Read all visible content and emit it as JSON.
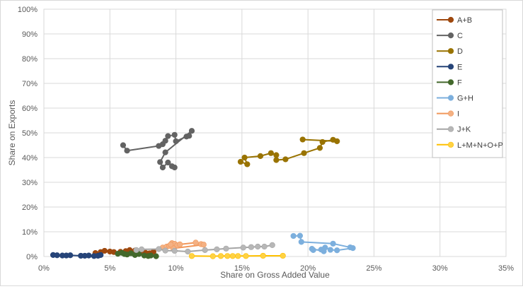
{
  "chart_data": {
    "type": "scatter",
    "title": "",
    "xlabel": "Share on Gross Added Value",
    "ylabel": "Share on Exports",
    "xlim": [
      0,
      35
    ],
    "ylim": [
      0,
      100
    ],
    "x_ticks": [
      "0%",
      "5%",
      "10%",
      "15%",
      "20%",
      "25%",
      "30%",
      "35%"
    ],
    "y_ticks": [
      "0%",
      "10%",
      "20%",
      "30%",
      "40%",
      "50%",
      "60%",
      "70%",
      "80%",
      "90%",
      "100%"
    ],
    "grid": true,
    "legend_position": "right",
    "series": [
      {
        "name": "A+B",
        "color": "#9e480e",
        "points": [
          [
            3.9,
            1.4
          ],
          [
            4.3,
            1.8
          ],
          [
            4.6,
            2.3
          ],
          [
            5.0,
            2.0
          ],
          [
            5.3,
            1.8
          ],
          [
            5.8,
            1.9
          ],
          [
            6.2,
            2.2
          ],
          [
            6.5,
            2.6
          ],
          [
            6.9,
            2.4
          ],
          [
            7.3,
            2.0
          ],
          [
            7.7,
            1.5
          ],
          [
            8.0,
            1.3
          ],
          [
            8.3,
            1.9
          ]
        ]
      },
      {
        "name": "C",
        "color": "#636363",
        "points": [
          [
            6.0,
            45.0
          ],
          [
            6.3,
            42.8
          ],
          [
            8.7,
            44.7
          ],
          [
            9.0,
            45.4
          ],
          [
            9.2,
            46.8
          ],
          [
            9.4,
            48.7
          ],
          [
            9.9,
            49.2
          ],
          [
            10.0,
            46.6
          ],
          [
            10.8,
            48.5
          ],
          [
            11.0,
            48.8
          ],
          [
            11.2,
            50.8
          ],
          [
            9.2,
            42.1
          ],
          [
            8.8,
            38.2
          ],
          [
            9.0,
            36.0
          ],
          [
            9.4,
            38.0
          ],
          [
            9.7,
            36.5
          ],
          [
            9.9,
            36.0
          ]
        ]
      },
      {
        "name": "D",
        "color": "#997300",
        "points": [
          [
            14.9,
            38.3
          ],
          [
            15.4,
            37.3
          ],
          [
            15.2,
            40.0
          ],
          [
            16.4,
            40.6
          ],
          [
            17.2,
            41.8
          ],
          [
            17.6,
            41.0
          ],
          [
            17.6,
            39.0
          ],
          [
            18.3,
            39.3
          ],
          [
            19.7,
            41.8
          ],
          [
            20.9,
            43.9
          ],
          [
            21.1,
            46.3
          ],
          [
            21.9,
            47.2
          ],
          [
            22.2,
            46.6
          ],
          [
            19.6,
            47.3
          ]
        ]
      },
      {
        "name": "E",
        "color": "#264478",
        "points": [
          [
            0.7,
            0.6
          ],
          [
            1.0,
            0.5
          ],
          [
            1.4,
            0.4
          ],
          [
            1.7,
            0.4
          ],
          [
            2.0,
            0.5
          ],
          [
            2.8,
            0.3
          ],
          [
            3.1,
            0.3
          ],
          [
            3.4,
            0.4
          ],
          [
            3.8,
            0.2
          ],
          [
            4.1,
            0.3
          ],
          [
            4.3,
            0.6
          ]
        ]
      },
      {
        "name": "F",
        "color": "#43682b",
        "points": [
          [
            5.6,
            1.1
          ],
          [
            5.9,
            1.5
          ],
          [
            6.1,
            1.0
          ],
          [
            6.3,
            0.8
          ],
          [
            6.6,
            1.3
          ],
          [
            6.9,
            0.6
          ],
          [
            7.2,
            1.0
          ],
          [
            7.6,
            0.4
          ],
          [
            7.9,
            0.2
          ],
          [
            8.1,
            0.4
          ],
          [
            8.5,
            0.1
          ]
        ]
      },
      {
        "name": "G+H",
        "color": "#7cafdd",
        "points": [
          [
            18.9,
            8.3
          ],
          [
            19.4,
            8.4
          ],
          [
            19.5,
            5.9
          ],
          [
            21.9,
            5.2
          ],
          [
            23.2,
            3.7
          ],
          [
            23.4,
            3.4
          ],
          [
            22.2,
            2.5
          ],
          [
            21.7,
            2.7
          ],
          [
            21.3,
            3.6
          ],
          [
            21.0,
            2.8
          ],
          [
            20.4,
            2.6
          ],
          [
            20.3,
            3.1
          ],
          [
            21.2,
            2.1
          ]
        ]
      },
      {
        "name": "I",
        "color": "#f4b183",
        "stroke": "#f1975a",
        "points": [
          [
            9.0,
            3.6
          ],
          [
            9.3,
            4.0
          ],
          [
            9.5,
            4.3
          ],
          [
            9.7,
            5.4
          ],
          [
            9.9,
            5.1
          ],
          [
            10.1,
            4.5
          ],
          [
            10.3,
            4.9
          ],
          [
            11.5,
            5.6
          ],
          [
            11.9,
            5.0
          ],
          [
            12.1,
            4.8
          ],
          [
            9.8,
            3.3
          ],
          [
            9.6,
            4.8
          ]
        ]
      },
      {
        "name": "J+K",
        "color": "#b7b7b7",
        "stroke": "#a5a5a5",
        "points": [
          [
            7.0,
            2.6
          ],
          [
            7.4,
            2.9
          ],
          [
            8.7,
            3.0
          ],
          [
            9.2,
            2.4
          ],
          [
            9.9,
            2.3
          ],
          [
            10.9,
            2.0
          ],
          [
            12.2,
            2.6
          ],
          [
            13.1,
            2.9
          ],
          [
            13.8,
            3.2
          ],
          [
            15.1,
            3.6
          ],
          [
            15.7,
            3.8
          ],
          [
            16.2,
            4.0
          ],
          [
            16.7,
            4.0
          ],
          [
            17.3,
            4.6
          ]
        ]
      },
      {
        "name": "L+M+N+O+P",
        "color": "#ffd243",
        "stroke": "#ffc000",
        "points": [
          [
            11.2,
            0.2
          ],
          [
            12.8,
            0.1
          ],
          [
            13.4,
            0.2
          ],
          [
            13.9,
            0.2
          ],
          [
            14.3,
            0.2
          ],
          [
            14.7,
            0.2
          ],
          [
            15.3,
            0.2
          ],
          [
            16.6,
            0.3
          ],
          [
            18.1,
            0.3
          ]
        ]
      }
    ]
  }
}
